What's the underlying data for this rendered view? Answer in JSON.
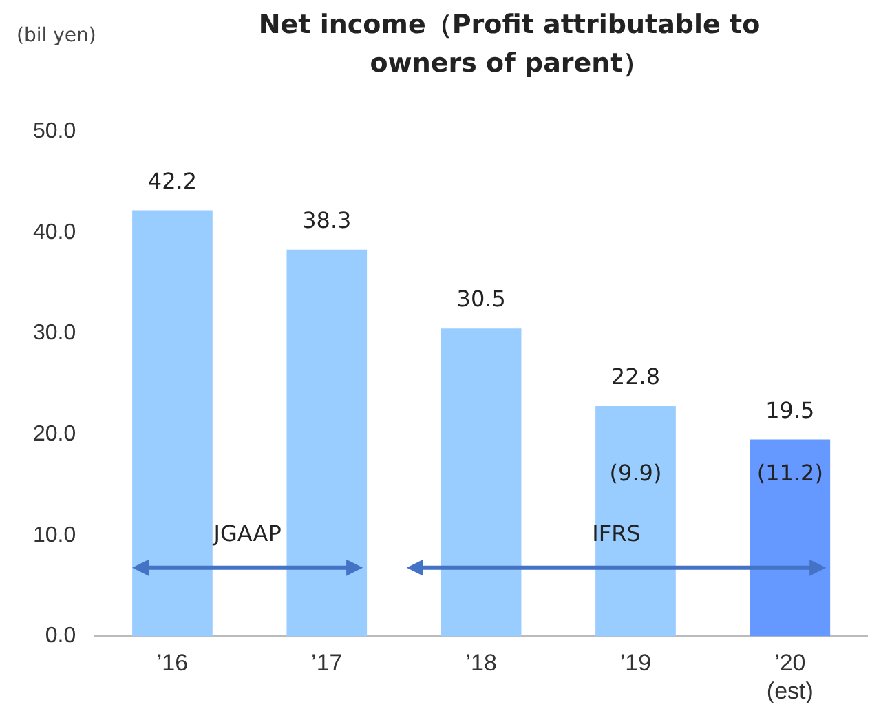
{
  "chart_data": {
    "type": "bar",
    "title": "Net income（Profit attributable to owners of parent）",
    "ylabel": "(bil yen)",
    "categories": [
      "’16",
      "’17",
      "’18",
      "’19",
      "’20\n(est)"
    ],
    "values": [
      42.2,
      38.3,
      30.5,
      22.8,
      19.5
    ],
    "colors": [
      "#99ccff",
      "#99ccff",
      "#99ccff",
      "#99ccff",
      "#6699ff"
    ],
    "ylim": [
      0,
      50
    ],
    "yticks": [
      {
        "value": 0,
        "label": "0.0"
      },
      {
        "value": 10,
        "label": "10.0"
      },
      {
        "value": 20,
        "label": "20.0"
      },
      {
        "value": 30,
        "label": "30.0"
      },
      {
        "value": 40,
        "label": "40.0"
      },
      {
        "value": 50,
        "label": "50.0"
      }
    ],
    "grid": false,
    "legend": false,
    "data_labels": true,
    "annotations": [
      "JGAAP",
      "IFRS",
      "(9.9)",
      "(11.2)"
    ]
  }
}
